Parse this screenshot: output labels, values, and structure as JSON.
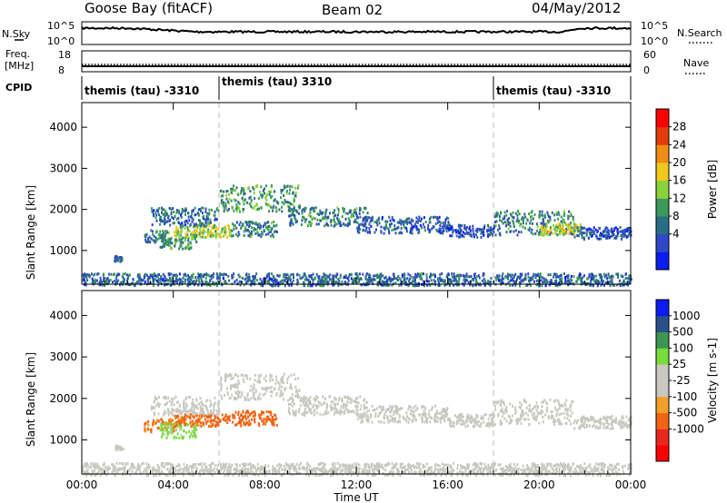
{
  "header": {
    "site": "Goose Bay (fitACF)",
    "beam": "Beam 02",
    "date": "04/May/2012"
  },
  "panels": {
    "nsky": {
      "label": "N.Sky",
      "ticks": [
        "10^5",
        "10^0"
      ]
    },
    "nsearch": {
      "label": "N.Search",
      "ticks": [
        "10^5",
        "10^0"
      ]
    },
    "freq": {
      "label_line1": "Freq.",
      "label_line2": "[MHz]",
      "ticks": [
        "18",
        "8"
      ]
    },
    "nave": {
      "label": "Nave",
      "ticks": [
        "60",
        "0"
      ]
    },
    "cpid": {
      "label": "CPID",
      "segments": [
        {
          "start_hour": 0,
          "end_hour": 6,
          "text": "themis (tau) -3310"
        },
        {
          "start_hour": 6,
          "end_hour": 18,
          "text": "themis (tau) 3310"
        },
        {
          "start_hour": 18,
          "end_hour": 24,
          "text": "themis (tau) -3310"
        }
      ]
    }
  },
  "axes": {
    "xlabel": "Time UT",
    "ylabel_main": "Slant Range",
    "ylabel_unit": "[km]",
    "x_tick_labels": [
      "00:00",
      "04:00",
      "08:00",
      "12:00",
      "16:00",
      "20:00",
      "00:00"
    ]
  },
  "colors": {
    "dashed_line": "#bbbbbb",
    "ground_scatter": "#c8c8c0"
  },
  "chart_data": [
    {
      "type": "heatmap",
      "title": "Power",
      "xlim": [
        0,
        24
      ],
      "ylim": [
        180,
        4600
      ],
      "y_ticks": [
        1000,
        2000,
        3000,
        4000
      ],
      "x_ticks": [
        0,
        4,
        8,
        12,
        16,
        20,
        24
      ],
      "dashed_lines": [
        6,
        18
      ],
      "colorbar": {
        "label": "Power [dB]",
        "tick_labels": [
          "28",
          "24",
          "20",
          "16",
          "12",
          "8",
          "4"
        ],
        "colors": [
          "#0a1cf0",
          "#2f47c8",
          "#2a6e86",
          "#3c9a5a",
          "#8ad23c",
          "#f0c81e",
          "#f08c14",
          "#e23c0a",
          "#ff0000"
        ]
      },
      "bands": [
        {
          "t0": 1.4,
          "t1": 1.8,
          "center": 830,
          "width": 70,
          "value": 6
        },
        {
          "t0": 2.7,
          "t1": 3.8,
          "center": 1380,
          "width": 160,
          "value": 10
        },
        {
          "t0": 3.4,
          "t1": 5.0,
          "center": 1250,
          "width": 180,
          "value": 12
        },
        {
          "t0": 4.0,
          "t1": 6.5,
          "center": 1500,
          "width": 150,
          "value": 16
        },
        {
          "t0": 3.0,
          "t1": 6.0,
          "center": 1850,
          "width": 220,
          "value": 8
        },
        {
          "t0": 6.0,
          "t1": 9.5,
          "center": 2300,
          "width": 320,
          "value": 12
        },
        {
          "t0": 6.5,
          "t1": 8.5,
          "center": 1550,
          "width": 180,
          "value": 10
        },
        {
          "t0": 9.0,
          "t1": 12.5,
          "center": 1850,
          "width": 230,
          "value": 10
        },
        {
          "t0": 12.0,
          "t1": 16.0,
          "center": 1650,
          "width": 200,
          "value": 7
        },
        {
          "t0": 16.0,
          "t1": 18.0,
          "center": 1500,
          "width": 150,
          "value": 6
        },
        {
          "t0": 18.0,
          "t1": 21.5,
          "center": 1700,
          "width": 300,
          "value": 10
        },
        {
          "t0": 20.0,
          "t1": 21.8,
          "center": 1550,
          "width": 140,
          "value": 18
        },
        {
          "t0": 21.5,
          "t1": 24.0,
          "center": 1450,
          "width": 150,
          "value": 6
        },
        {
          "t0": 0.0,
          "t1": 24.0,
          "center": 320,
          "width": 150,
          "value": 8
        }
      ]
    },
    {
      "type": "heatmap",
      "title": "Velocity",
      "xlim": [
        0,
        24
      ],
      "ylim": [
        180,
        4600
      ],
      "y_ticks": [
        1000,
        2000,
        3000,
        4000
      ],
      "x_ticks": [
        0,
        4,
        8,
        12,
        16,
        20,
        24
      ],
      "dashed_lines": [
        6,
        18
      ],
      "colorbar": {
        "label": "Velocity [m s-1]",
        "tick_labels": [
          "1000",
          "500",
          "100",
          "25",
          "-25",
          "-100",
          "-500",
          "-1000"
        ],
        "colors": [
          "#ff0000",
          "#e8281e",
          "#f06414",
          "#f0a028",
          "#c8c8c0",
          "#c8c8c0",
          "#78dc3c",
          "#3c9650",
          "#28508c",
          "#0a1cf0"
        ]
      },
      "bands": [
        {
          "t0": 1.4,
          "t1": 1.8,
          "center": 830,
          "width": 70,
          "value": 0
        },
        {
          "t0": 2.7,
          "t1": 4.0,
          "center": 1380,
          "width": 160,
          "value": -150
        },
        {
          "t0": 3.4,
          "t1": 5.0,
          "center": 1250,
          "width": 180,
          "value": 200
        },
        {
          "t0": 4.0,
          "t1": 6.5,
          "center": 1500,
          "width": 150,
          "value": -200
        },
        {
          "t0": 6.5,
          "t1": 8.5,
          "center": 1550,
          "width": 180,
          "value": -250
        },
        {
          "t0": 3.0,
          "t1": 6.0,
          "center": 1850,
          "width": 220,
          "value": 0
        },
        {
          "t0": 6.0,
          "t1": 9.5,
          "center": 2300,
          "width": 320,
          "value": 0
        },
        {
          "t0": 9.0,
          "t1": 12.5,
          "center": 1850,
          "width": 230,
          "value": 0
        },
        {
          "t0": 12.0,
          "t1": 16.0,
          "center": 1650,
          "width": 200,
          "value": 0
        },
        {
          "t0": 16.0,
          "t1": 18.0,
          "center": 1500,
          "width": 150,
          "value": 0
        },
        {
          "t0": 18.0,
          "t1": 21.5,
          "center": 1700,
          "width": 300,
          "value": 0
        },
        {
          "t0": 21.5,
          "t1": 24.0,
          "center": 1450,
          "width": 150,
          "value": 0
        },
        {
          "t0": 0.0,
          "t1": 24.0,
          "center": 320,
          "width": 150,
          "value": 0
        }
      ]
    }
  ]
}
